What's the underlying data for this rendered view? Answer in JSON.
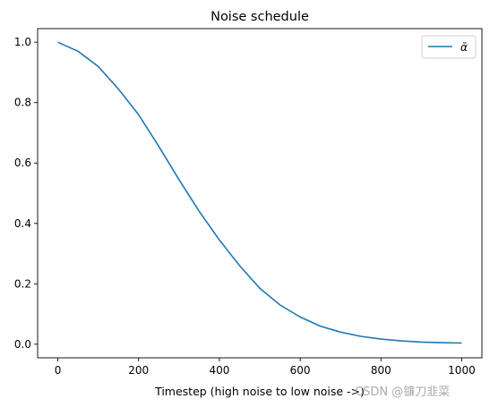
{
  "chart_data": {
    "type": "line",
    "title": "Noise schedule",
    "xlabel": "Timestep (high noise to low noise ->)",
    "ylabel": "",
    "xlim": [
      -50,
      1050
    ],
    "ylim": [
      -0.045,
      1.045
    ],
    "xticks": [
      0,
      200,
      400,
      600,
      800,
      1000
    ],
    "yticks": [
      0.0,
      0.2,
      0.4,
      0.6,
      0.8,
      1.0
    ],
    "xtick_labels": [
      "0",
      "200",
      "400",
      "600",
      "800",
      "1000"
    ],
    "ytick_labels": [
      "0.0",
      "0.2",
      "0.4",
      "0.6",
      "0.8",
      "1.0"
    ],
    "grid": false,
    "legend_position": "top-right",
    "series": [
      {
        "name": "ᾱ",
        "color": "#1f77b4",
        "x": [
          0,
          50,
          100,
          150,
          200,
          250,
          300,
          350,
          400,
          450,
          500,
          550,
          600,
          650,
          700,
          750,
          800,
          850,
          900,
          950,
          1000
        ],
        "values": [
          1.0,
          0.97,
          0.92,
          0.845,
          0.76,
          0.655,
          0.545,
          0.44,
          0.345,
          0.26,
          0.185,
          0.13,
          0.09,
          0.06,
          0.04,
          0.026,
          0.017,
          0.011,
          0.007,
          0.005,
          0.004
        ]
      }
    ]
  },
  "watermark": "CSDN @镰刀韭菜"
}
